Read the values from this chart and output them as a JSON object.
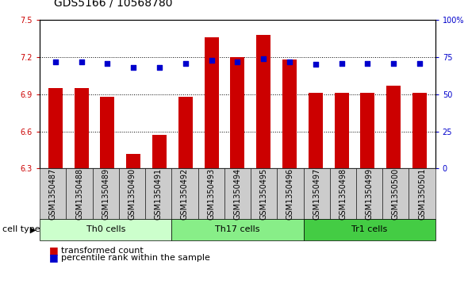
{
  "title": "GDS5166 / 10568780",
  "samples": [
    "GSM1350487",
    "GSM1350488",
    "GSM1350489",
    "GSM1350490",
    "GSM1350491",
    "GSM1350492",
    "GSM1350493",
    "GSM1350494",
    "GSM1350495",
    "GSM1350496",
    "GSM1350497",
    "GSM1350498",
    "GSM1350499",
    "GSM1350500",
    "GSM1350501"
  ],
  "transformed_count": [
    6.95,
    6.95,
    6.88,
    6.42,
    6.57,
    6.88,
    7.36,
    7.2,
    7.38,
    7.18,
    6.91,
    6.91,
    6.91,
    6.97,
    6.91
  ],
  "percentile_rank": [
    72,
    72,
    71,
    68,
    68,
    71,
    73,
    72,
    74,
    72,
    70,
    71,
    71,
    71,
    71
  ],
  "bar_color": "#cc0000",
  "dot_color": "#0000cc",
  "ylim_left": [
    6.3,
    7.5
  ],
  "ylim_right": [
    0,
    100
  ],
  "yticks_left": [
    6.3,
    6.6,
    6.9,
    7.2,
    7.5
  ],
  "ytick_labels_left": [
    "6.3",
    "6.6",
    "6.9",
    "7.2",
    "7.5"
  ],
  "yticks_right": [
    0,
    25,
    50,
    75,
    100
  ],
  "ytick_labels_right": [
    "0",
    "25",
    "50",
    "75",
    "100%"
  ],
  "cell_groups": [
    {
      "label": "Th0 cells",
      "start": 0,
      "end": 5,
      "color": "#ccffcc"
    },
    {
      "label": "Th17 cells",
      "start": 5,
      "end": 10,
      "color": "#88ee88"
    },
    {
      "label": "Tr1 cells",
      "start": 10,
      "end": 15,
      "color": "#44cc44"
    }
  ],
  "legend_bar_label": "transformed count",
  "legend_dot_label": "percentile rank within the sample",
  "cell_type_label": "cell type",
  "background_color": "#ffffff",
  "plot_bg_color": "#ffffff",
  "bar_width": 0.55,
  "title_fontsize": 10,
  "tick_fontsize": 7,
  "legend_fontsize": 8,
  "xlabel_fontsize": 7,
  "gray_col_color": "#cccccc"
}
